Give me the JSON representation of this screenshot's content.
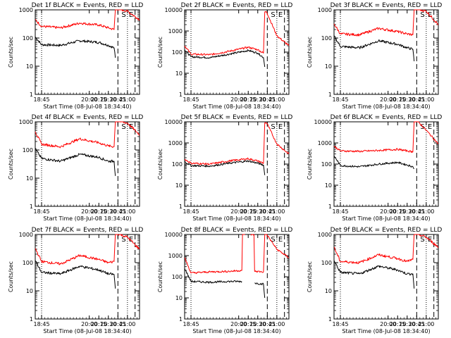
{
  "figure": {
    "xaxis_title": "Start Time (08-Jul-08 18:34:40)",
    "yaxis_title": "Counts/sec",
    "colors": {
      "events": "#000000",
      "lld": "#ff0000",
      "axes": "#000000",
      "background": "#ffffff"
    }
  },
  "chart_data": [
    {
      "type": "line",
      "title": "Det 1f BLACK = Events, RED = LLD",
      "xlabel": "Start Time (08-Jul-08 18:34:40)",
      "ylabel": "Counts/sec",
      "xlim": [
        "18:35",
        "21:19"
      ],
      "ylim": [
        1,
        1000
      ],
      "yscale": "log",
      "xticks": [
        "18:45",
        "20:00",
        "20:15",
        "20:30",
        "20:45",
        "21:00"
      ],
      "yticks": [
        "1",
        "10",
        "100",
        "1000"
      ],
      "vlines": [
        {
          "x": "18:45",
          "style": "dotted"
        },
        {
          "x": "20:45",
          "style": "dashed"
        },
        {
          "x": "21:00",
          "style": "dotted"
        },
        {
          "x": "21:12",
          "style": "dashed"
        }
      ],
      "annotations": [
        "S",
        "E"
      ],
      "series": [
        {
          "color": "#000000",
          "x": [
            "18:35",
            "18:45",
            "19:15",
            "19:45",
            "20:15",
            "20:30",
            "20:39",
            "20:41",
            "20:46",
            "21:19"
          ],
          "y": [
            110,
            58,
            55,
            80,
            70,
            55,
            45,
            20,
            null,
            null
          ]
        },
        {
          "color": "#ff0000",
          "x": [
            "18:35",
            "18:45",
            "19:15",
            "19:45",
            "20:15",
            "20:30",
            "20:39",
            "20:41",
            "20:43",
            "21:00",
            "21:19"
          ],
          "y": [
            450,
            260,
            230,
            340,
            290,
            230,
            200,
            1100,
            1100,
            900,
            450
          ]
        }
      ]
    },
    {
      "type": "line",
      "title": "Det 2f BLACK = Events, RED = LLD",
      "xlabel": "Start Time (08-Jul-08 18:34:40)",
      "ylabel": "Counts/sec",
      "xlim": [
        "18:35",
        "21:19"
      ],
      "ylim": [
        1,
        10000
      ],
      "yscale": "log",
      "xticks": [
        "18:45",
        "20:00",
        "20:15",
        "20:30",
        "20:45",
        "21:00"
      ],
      "yticks": [
        "1",
        "10",
        "100",
        "1000",
        "10000"
      ],
      "vlines": [
        {
          "x": "18:45",
          "style": "dotted"
        },
        {
          "x": "20:45",
          "style": "dashed"
        },
        {
          "x": "21:00",
          "style": "dotted"
        },
        {
          "x": "21:12",
          "style": "dashed"
        }
      ],
      "annotations": [
        "S",
        "E"
      ],
      "series": [
        {
          "color": "#000000",
          "x": [
            "18:35",
            "18:45",
            "19:15",
            "19:45",
            "20:15",
            "20:30",
            "20:39",
            "20:41",
            "20:46",
            "21:19"
          ],
          "y": [
            130,
            60,
            55,
            80,
            120,
            90,
            55,
            20,
            null,
            null
          ]
        },
        {
          "color": "#ff0000",
          "x": [
            "18:35",
            "18:45",
            "19:15",
            "19:45",
            "20:15",
            "20:30",
            "20:39",
            "20:41",
            "20:44",
            "21:00",
            "21:19"
          ],
          "y": [
            200,
            80,
            75,
            110,
            170,
            130,
            90,
            8000,
            8000,
            600,
            200
          ]
        }
      ]
    },
    {
      "type": "line",
      "title": "Det 3f BLACK = Events, RED = LLD",
      "xlabel": "Start Time (08-Jul-08 18:34:40)",
      "ylabel": "Counts/sec",
      "xlim": [
        "18:35",
        "21:19"
      ],
      "ylim": [
        1,
        1000
      ],
      "yscale": "log",
      "xticks": [
        "18:45",
        "20:00",
        "20:15",
        "20:30",
        "20:45",
        "21:00"
      ],
      "yticks": [
        "1",
        "10",
        "100",
        "1000"
      ],
      "vlines": [
        {
          "x": "18:45",
          "style": "dotted"
        },
        {
          "x": "20:45",
          "style": "dashed"
        },
        {
          "x": "21:00",
          "style": "dotted"
        },
        {
          "x": "21:12",
          "style": "dashed"
        }
      ],
      "annotations": [
        "S",
        "E"
      ],
      "series": [
        {
          "color": "#000000",
          "x": [
            "18:35",
            "18:45",
            "19:15",
            "19:45",
            "20:15",
            "20:30",
            "20:39",
            "20:41",
            "20:46",
            "21:19"
          ],
          "y": [
            120,
            50,
            45,
            80,
            60,
            45,
            40,
            15,
            null,
            null
          ]
        },
        {
          "color": "#ff0000",
          "x": [
            "18:35",
            "18:45",
            "19:15",
            "19:45",
            "20:15",
            "20:30",
            "20:39",
            "20:41",
            "20:43",
            "21:00",
            "21:19"
          ],
          "y": [
            320,
            140,
            130,
            220,
            170,
            140,
            130,
            1100,
            1100,
            900,
            300
          ]
        }
      ]
    },
    {
      "type": "line",
      "title": "Det 4f BLACK = Events, RED = LLD",
      "xlabel": "Start Time (08-Jul-08 18:34:40)",
      "ylabel": "Counts/sec",
      "xlim": [
        "18:35",
        "21:19"
      ],
      "ylim": [
        1,
        1000
      ],
      "yscale": "log",
      "xticks": [
        "18:45",
        "20:00",
        "20:15",
        "20:30",
        "20:45",
        "21:00"
      ],
      "yticks": [
        "1",
        "10",
        "100",
        "1000"
      ],
      "vlines": [
        {
          "x": "18:45",
          "style": "dotted"
        },
        {
          "x": "20:45",
          "style": "dashed"
        },
        {
          "x": "21:00",
          "style": "dotted"
        },
        {
          "x": "21:12",
          "style": "dashed"
        }
      ],
      "annotations": [
        "S",
        "E"
      ],
      "series": [
        {
          "color": "#000000",
          "x": [
            "18:35",
            "18:45",
            "19:15",
            "19:45",
            "20:15",
            "20:30",
            "20:39",
            "20:41",
            "20:46",
            "21:19"
          ],
          "y": [
            110,
            50,
            40,
            70,
            55,
            40,
            40,
            12,
            null,
            null
          ]
        },
        {
          "color": "#ff0000",
          "x": [
            "18:35",
            "18:45",
            "19:15",
            "19:45",
            "20:15",
            "20:30",
            "20:39",
            "20:41",
            "20:43",
            "21:00",
            "21:19"
          ],
          "y": [
            450,
            160,
            130,
            250,
            180,
            140,
            130,
            1100,
            1100,
            900,
            350
          ]
        }
      ]
    },
    {
      "type": "line",
      "title": "Det 5f BLACK = Events, RED = LLD",
      "xlabel": "Start Time (08-Jul-08 18:34:40)",
      "ylabel": "Counts/sec",
      "xlim": [
        "18:35",
        "21:19"
      ],
      "ylim": [
        1,
        10000
      ],
      "yscale": "log",
      "xticks": [
        "18:45",
        "20:00",
        "20:15",
        "20:30",
        "20:45",
        "21:00"
      ],
      "yticks": [
        "1",
        "10",
        "100",
        "1000",
        "10000"
      ],
      "vlines": [
        {
          "x": "18:45",
          "style": "dotted"
        },
        {
          "x": "20:45",
          "style": "dashed"
        },
        {
          "x": "21:00",
          "style": "dotted"
        },
        {
          "x": "21:12",
          "style": "dashed"
        }
      ],
      "annotations": [
        "S",
        "E"
      ],
      "series": [
        {
          "color": "#000000",
          "x": [
            "18:35",
            "18:45",
            "19:15",
            "19:45",
            "20:15",
            "20:30",
            "20:39",
            "20:41",
            "20:46",
            "21:19"
          ],
          "y": [
            130,
            85,
            80,
            110,
            140,
            110,
            90,
            30,
            null,
            null
          ]
        },
        {
          "color": "#ff0000",
          "x": [
            "18:35",
            "18:45",
            "19:15",
            "19:45",
            "20:15",
            "20:30",
            "20:39",
            "20:41",
            "20:44",
            "21:00",
            "21:19"
          ],
          "y": [
            170,
            110,
            100,
            140,
            180,
            140,
            110,
            9000,
            9000,
            900,
            300
          ]
        }
      ]
    },
    {
      "type": "line",
      "title": "Det 6f BLACK = Events, RED = LLD",
      "xlabel": "Start Time (08-Jul-08 18:34:40)",
      "ylabel": "Counts/sec",
      "xlim": [
        "18:35",
        "21:19"
      ],
      "ylim": [
        1,
        10000
      ],
      "yscale": "log",
      "xticks": [
        "18:45",
        "20:00",
        "20:15",
        "20:30",
        "20:45",
        "21:00"
      ],
      "yticks": [
        "1",
        "10",
        "100",
        "1000",
        "10000"
      ],
      "vlines": [
        {
          "x": "18:45",
          "style": "dotted"
        },
        {
          "x": "20:45",
          "style": "dashed"
        },
        {
          "x": "21:00",
          "style": "dotted"
        },
        {
          "x": "21:12",
          "style": "dashed"
        }
      ],
      "annotations": [
        "S",
        "E"
      ],
      "series": [
        {
          "color": "#000000",
          "x": [
            "18:35",
            "18:45",
            "19:15",
            "19:45",
            "20:15",
            "20:30",
            "20:39",
            "20:41",
            "20:46",
            "21:19"
          ],
          "y": [
            250,
            85,
            75,
            100,
            120,
            90,
            75,
            60,
            null,
            null
          ]
        },
        {
          "color": "#ff0000",
          "x": [
            "18:35",
            "18:45",
            "19:15",
            "19:45",
            "20:15",
            "20:30",
            "20:39",
            "20:41",
            "20:46",
            "21:00",
            "21:19"
          ],
          "y": [
            700,
            420,
            400,
            440,
            500,
            420,
            380,
            11000,
            11000,
            4000,
            900
          ]
        }
      ]
    },
    {
      "type": "line",
      "title": "Det 7f BLACK = Events, RED = LLD",
      "xlabel": "Start Time (08-Jul-08 18:34:40)",
      "ylabel": "Counts/sec",
      "xlim": [
        "18:35",
        "21:19"
      ],
      "ylim": [
        1,
        1000
      ],
      "yscale": "log",
      "xticks": [
        "18:45",
        "20:00",
        "20:15",
        "20:30",
        "20:45",
        "21:00"
      ],
      "yticks": [
        "1",
        "10",
        "100",
        "1000"
      ],
      "vlines": [
        {
          "x": "18:45",
          "style": "dotted"
        },
        {
          "x": "20:45",
          "style": "dashed"
        },
        {
          "x": "21:00",
          "style": "dotted"
        },
        {
          "x": "21:12",
          "style": "dashed"
        }
      ],
      "annotations": [
        "S",
        "E"
      ],
      "series": [
        {
          "color": "#000000",
          "x": [
            "18:35",
            "18:45",
            "19:15",
            "19:45",
            "20:15",
            "20:30",
            "20:39",
            "20:41",
            "20:46",
            "21:19"
          ],
          "y": [
            120,
            45,
            40,
            75,
            55,
            40,
            38,
            12,
            null,
            null
          ]
        },
        {
          "color": "#ff0000",
          "x": [
            "18:35",
            "18:45",
            "19:15",
            "19:45",
            "20:15",
            "20:30",
            "20:39",
            "20:41",
            "20:43",
            "21:00",
            "21:19"
          ],
          "y": [
            320,
            110,
            90,
            180,
            130,
            100,
            110,
            1100,
            1100,
            800,
            300
          ]
        }
      ]
    },
    {
      "type": "line",
      "title": "Det 8f BLACK = Events, RED = LLD",
      "xlabel": "Start Time (08-Jul-08 18:34:40)",
      "ylabel": "Counts/sec",
      "xlim": [
        "18:35",
        "21:19"
      ],
      "ylim": [
        1,
        10000
      ],
      "yscale": "log",
      "xticks": [
        "18:45",
        "20:00",
        "20:15",
        "20:30",
        "20:45",
        "21:00"
      ],
      "yticks": [
        "1",
        "10",
        "100",
        "1000",
        "10000"
      ],
      "vlines": [
        {
          "x": "18:45",
          "style": "dotted"
        },
        {
          "x": "20:45",
          "style": "dashed"
        },
        {
          "x": "21:00",
          "style": "dotted"
        },
        {
          "x": "21:12",
          "style": "dashed"
        }
      ],
      "annotations": [
        "S",
        "E"
      ],
      "series": [
        {
          "color": "#000000",
          "x": [
            "18:35",
            "18:45",
            "19:15",
            "19:45",
            "20:05",
            "20:05",
            "20:25",
            "20:25",
            "20:39",
            "20:41",
            "20:46",
            "21:19"
          ],
          "y": [
            250,
            60,
            55,
            60,
            60,
            null,
            null,
            50,
            45,
            10,
            null,
            null
          ]
        },
        {
          "color": "#ff0000",
          "x": [
            "18:35",
            "18:45",
            "19:15",
            "19:45",
            "20:05",
            "20:06",
            "20:10",
            "20:11",
            "20:18",
            "20:19",
            "20:24",
            "20:25",
            "20:39",
            "20:41",
            "20:44",
            "21:00",
            "21:19"
          ],
          "y": [
            800,
            150,
            170,
            180,
            200,
            10000,
            10000,
            null,
            null,
            10000,
            10000,
            180,
            170,
            10000,
            10000,
            2000,
            800
          ]
        }
      ]
    },
    {
      "type": "line",
      "title": "Det 9f BLACK = Events, RED = LLD",
      "xlabel": "Start Time (08-Jul-08 18:34:40)",
      "ylabel": "Counts/sec",
      "xlim": [
        "18:35",
        "21:19"
      ],
      "ylim": [
        1,
        1000
      ],
      "yscale": "log",
      "xticks": [
        "18:45",
        "20:00",
        "20:15",
        "20:30",
        "20:45",
        "21:00"
      ],
      "yticks": [
        "1",
        "10",
        "100",
        "1000"
      ],
      "vlines": [
        {
          "x": "18:45",
          "style": "dotted"
        },
        {
          "x": "20:45",
          "style": "dashed"
        },
        {
          "x": "21:00",
          "style": "dotted"
        },
        {
          "x": "21:12",
          "style": "dashed"
        }
      ],
      "annotations": [
        "S",
        "E"
      ],
      "series": [
        {
          "color": "#000000",
          "x": [
            "18:35",
            "18:45",
            "19:15",
            "19:45",
            "20:15",
            "20:30",
            "20:39",
            "20:41",
            "20:46",
            "21:19"
          ],
          "y": [
            120,
            45,
            40,
            75,
            55,
            40,
            40,
            12,
            null,
            null
          ]
        },
        {
          "color": "#ff0000",
          "x": [
            "18:35",
            "18:45",
            "19:15",
            "19:45",
            "20:15",
            "20:30",
            "20:39",
            "20:41",
            "20:43",
            "21:00",
            "21:19"
          ],
          "y": [
            350,
            110,
            100,
            190,
            140,
            110,
            130,
            1100,
            1100,
            800,
            350
          ]
        }
      ]
    }
  ]
}
